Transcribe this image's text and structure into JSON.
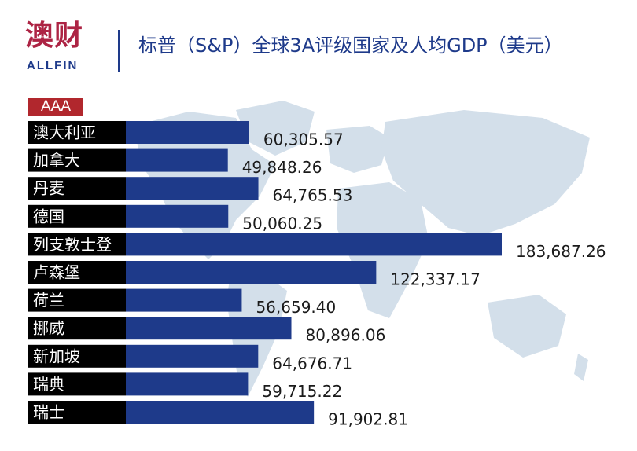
{
  "header": {
    "logo_cn": "澳财",
    "logo_en": "ALLFIN",
    "title": "标普（S&P）全球3A评级国家及人均GDP（美元）"
  },
  "tag": "AAA",
  "colors": {
    "bar": "#1e3a8a",
    "label_box": "#000000",
    "tag_bg": "#b1272d",
    "map": "#d3dfea"
  },
  "chart_data": {
    "type": "bar",
    "orientation": "horizontal",
    "categories": [
      "澳大利亚",
      "加拿大",
      "丹麦",
      "德国",
      "列支敦士登",
      "卢森堡",
      "荷兰",
      "挪威",
      "新加坡",
      "瑞典",
      "瑞士"
    ],
    "values": [
      60305.57,
      49848.26,
      64765.53,
      50060.25,
      183687.26,
      122337.17,
      56659.4,
      80896.06,
      64676.71,
      59715.22,
      91902.81
    ],
    "value_labels": [
      "60,305.57",
      "49,848.26",
      "64,765.53",
      "50,060.25",
      "183,687.26",
      "122,337.17",
      "56,659.40",
      "80,896.06",
      "64,676.71",
      "59,715.22",
      "91,902.81"
    ]
  }
}
